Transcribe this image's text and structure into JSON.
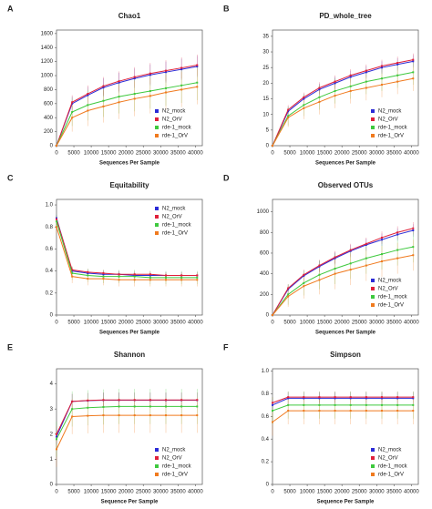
{
  "chart_data": [
    {
      "type": "line",
      "label": "A",
      "title": "Chao1",
      "x_label": "Sequences Per Sample",
      "legend": "lower right",
      "x": [
        0,
        4500,
        9000,
        13500,
        18000,
        22500,
        27000,
        31500,
        36000,
        40500
      ],
      "xlim": [
        0,
        42000
      ],
      "xticks": [
        0,
        5000,
        10000,
        15000,
        20000,
        25000,
        30000,
        35000,
        40000
      ],
      "ylim": [
        0,
        1650
      ],
      "yticks": [
        0,
        200,
        400,
        600,
        800,
        1000,
        1200,
        1400,
        1600
      ],
      "series": [
        {
          "name": "N2_mock",
          "color": "#2b2bd6",
          "values": [
            0,
            600,
            720,
            830,
            900,
            960,
            1010,
            1050,
            1090,
            1130
          ],
          "errors": [
            0,
            100,
            120,
            130,
            140,
            140,
            150,
            150,
            150,
            150
          ]
        },
        {
          "name": "N2_OrV",
          "color": "#e0203a",
          "values": [
            0,
            620,
            740,
            850,
            920,
            980,
            1030,
            1070,
            1110,
            1150
          ],
          "errors": [
            0,
            100,
            120,
            130,
            140,
            140,
            150,
            150,
            150,
            150
          ]
        },
        {
          "name": "rde-1_mock",
          "color": "#3ec93e",
          "values": [
            0,
            480,
            580,
            640,
            700,
            740,
            780,
            820,
            860,
            900
          ],
          "errors": [
            0,
            200,
            220,
            230,
            240,
            250,
            250,
            250,
            250,
            250
          ]
        },
        {
          "name": "rde-1_OrV",
          "color": "#f07a1e",
          "values": [
            0,
            400,
            500,
            560,
            620,
            670,
            710,
            760,
            800,
            840
          ],
          "errors": [
            0,
            200,
            220,
            230,
            240,
            250,
            250,
            250,
            250,
            250
          ]
        }
      ]
    },
    {
      "type": "line",
      "label": "B",
      "title": "PD_whole_tree",
      "x_label": "Sequences Per Sample",
      "legend": "lower right",
      "x": [
        0,
        4500,
        9000,
        13500,
        18000,
        22500,
        27000,
        31500,
        36000,
        40500
      ],
      "xlim": [
        0,
        42000
      ],
      "xticks": [
        0,
        5000,
        10000,
        15000,
        20000,
        25000,
        30000,
        35000,
        40000
      ],
      "ylim": [
        0,
        37
      ],
      "yticks": [
        0,
        5,
        10,
        15,
        20,
        25,
        30,
        35
      ],
      "series": [
        {
          "name": "N2_mock",
          "color": "#2b2bd6",
          "values": [
            0,
            11,
            15,
            18,
            20,
            22,
            23.5,
            25,
            26,
            27
          ],
          "errors": [
            0,
            1.5,
            1.5,
            1.8,
            2,
            2,
            2,
            2,
            2,
            2
          ]
        },
        {
          "name": "N2_OrV",
          "color": "#e0203a",
          "values": [
            0,
            11.5,
            15.5,
            18.5,
            20.5,
            22.5,
            24,
            25.5,
            26.5,
            27.5
          ],
          "errors": [
            0,
            1.5,
            1.5,
            1.8,
            2,
            2,
            2,
            2,
            2,
            2
          ]
        },
        {
          "name": "rde-1_mock",
          "color": "#3ec93e",
          "values": [
            0,
            9.5,
            13,
            15.5,
            17.5,
            19,
            20.5,
            21.5,
            22.5,
            23.5
          ],
          "errors": [
            0,
            3,
            3.5,
            4,
            4,
            4,
            4,
            4,
            4,
            4
          ]
        },
        {
          "name": "rde-1_OrV",
          "color": "#f07a1e",
          "values": [
            0,
            9,
            12,
            14,
            16,
            17.5,
            18.5,
            19.5,
            20.5,
            21.5
          ],
          "errors": [
            0,
            3,
            3.5,
            4,
            4,
            4,
            4,
            4,
            4,
            4
          ]
        }
      ]
    },
    {
      "type": "line",
      "label": "C",
      "title": "Equitability",
      "x_label": "Sequences Per Sample",
      "legend": "upper right",
      "x": [
        0,
        4500,
        9000,
        13500,
        18000,
        22500,
        27000,
        31500,
        36000,
        40500
      ],
      "xlim": [
        0,
        42000
      ],
      "xticks": [
        0,
        5000,
        10000,
        15000,
        20000,
        25000,
        30000,
        35000,
        40000
      ],
      "ylim": [
        0,
        1.05
      ],
      "yticks": [
        0,
        0.2,
        0.4,
        0.6,
        0.8,
        {
          "value": 1,
          "label": "1.0"
        }
      ],
      "series": [
        {
          "name": "N2_mock",
          "color": "#2b2bd6",
          "values": [
            0.88,
            0.4,
            0.38,
            0.37,
            0.37,
            0.36,
            0.36,
            0.36,
            0.36,
            0.36
          ],
          "errors": [
            0.03,
            0.03,
            0.03,
            0.03,
            0.03,
            0.03,
            0.03,
            0.03,
            0.03,
            0.03
          ]
        },
        {
          "name": "N2_OrV",
          "color": "#e0203a",
          "values": [
            0.87,
            0.41,
            0.39,
            0.38,
            0.37,
            0.37,
            0.37,
            0.36,
            0.36,
            0.36
          ],
          "errors": [
            0.03,
            0.03,
            0.03,
            0.03,
            0.03,
            0.03,
            0.03,
            0.03,
            0.03,
            0.03
          ]
        },
        {
          "name": "rde-1_mock",
          "color": "#3ec93e",
          "values": [
            0.85,
            0.38,
            0.36,
            0.35,
            0.35,
            0.35,
            0.34,
            0.34,
            0.34,
            0.34
          ],
          "errors": [
            0.06,
            0.06,
            0.06,
            0.06,
            0.06,
            0.06,
            0.06,
            0.06,
            0.06,
            0.06
          ]
        },
        {
          "name": "rde-1_OrV",
          "color": "#f07a1e",
          "values": [
            0.8,
            0.35,
            0.33,
            0.33,
            0.32,
            0.32,
            0.32,
            0.32,
            0.32,
            0.32
          ],
          "errors": [
            0.06,
            0.06,
            0.06,
            0.06,
            0.06,
            0.06,
            0.06,
            0.06,
            0.06,
            0.06
          ]
        }
      ]
    },
    {
      "type": "line",
      "label": "D",
      "title": "Observed OTUs",
      "x_label": "Sequences Per Sample",
      "legend": "lower right",
      "x": [
        0,
        4500,
        9000,
        13500,
        18000,
        22500,
        27000,
        31500,
        36000,
        40500
      ],
      "xlim": [
        0,
        42000
      ],
      "xticks": [
        0,
        5000,
        10000,
        15000,
        20000,
        25000,
        30000,
        35000,
        40000
      ],
      "ylim": [
        0,
        1120
      ],
      "yticks": [
        0,
        200,
        400,
        600,
        800,
        1000
      ],
      "series": [
        {
          "name": "N2_mock",
          "color": "#2b2bd6",
          "values": [
            0,
            250,
            380,
            470,
            550,
            620,
            680,
            730,
            780,
            820
          ],
          "errors": [
            0,
            40,
            50,
            55,
            60,
            60,
            60,
            60,
            60,
            60
          ]
        },
        {
          "name": "N2_OrV",
          "color": "#e0203a",
          "values": [
            0,
            260,
            390,
            480,
            560,
            630,
            690,
            750,
            800,
            840
          ],
          "errors": [
            0,
            40,
            50,
            55,
            60,
            60,
            60,
            60,
            60,
            60
          ]
        },
        {
          "name": "rde-1_mock",
          "color": "#3ec93e",
          "values": [
            0,
            200,
            310,
            390,
            450,
            500,
            550,
            590,
            630,
            660
          ],
          "errors": [
            0,
            100,
            120,
            140,
            150,
            150,
            150,
            150,
            150,
            150
          ]
        },
        {
          "name": "rde-1_OrV",
          "color": "#f07a1e",
          "values": [
            0,
            180,
            280,
            340,
            400,
            440,
            480,
            520,
            550,
            580
          ],
          "errors": [
            0,
            100,
            120,
            140,
            150,
            150,
            150,
            150,
            150,
            150
          ]
        }
      ]
    },
    {
      "type": "line",
      "label": "E",
      "title": "Shannon",
      "x_label": "Sequence Per Sample",
      "legend": "lower right",
      "x": [
        0,
        4500,
        9000,
        13500,
        18000,
        22500,
        27000,
        31500,
        36000,
        40500
      ],
      "xlim": [
        0,
        42000
      ],
      "xticks": [
        0,
        5000,
        10000,
        15000,
        20000,
        25000,
        30000,
        35000,
        40000
      ],
      "ylim": [
        0,
        4.6
      ],
      "yticks": [
        0,
        1,
        2,
        3,
        4
      ],
      "series": [
        {
          "name": "N2_mock",
          "color": "#2b2bd6",
          "values": [
            1.9,
            3.3,
            3.33,
            3.35,
            3.35,
            3.35,
            3.35,
            3.35,
            3.35,
            3.35
          ],
          "errors": [
            0.3,
            0.3,
            0.3,
            0.3,
            0.3,
            0.3,
            0.3,
            0.3,
            0.3,
            0.3
          ]
        },
        {
          "name": "N2_OrV",
          "color": "#e0203a",
          "values": [
            2.0,
            3.3,
            3.34,
            3.36,
            3.36,
            3.36,
            3.36,
            3.36,
            3.36,
            3.36
          ],
          "errors": [
            0.3,
            0.3,
            0.3,
            0.3,
            0.3,
            0.3,
            0.3,
            0.3,
            0.3,
            0.3
          ]
        },
        {
          "name": "rde-1_mock",
          "color": "#3ec93e",
          "values": [
            1.8,
            3.0,
            3.05,
            3.08,
            3.1,
            3.1,
            3.1,
            3.1,
            3.1,
            3.1
          ],
          "errors": [
            0.7,
            0.7,
            0.7,
            0.7,
            0.7,
            0.7,
            0.7,
            0.7,
            0.7,
            0.7
          ]
        },
        {
          "name": "rde-1_OrV",
          "color": "#f07a1e",
          "values": [
            1.4,
            2.7,
            2.73,
            2.75,
            2.75,
            2.75,
            2.75,
            2.75,
            2.75,
            2.75
          ],
          "errors": [
            0.7,
            0.7,
            0.7,
            0.7,
            0.7,
            0.7,
            0.7,
            0.7,
            0.7,
            0.7
          ]
        }
      ]
    },
    {
      "type": "line",
      "label": "F",
      "title": "Simpson",
      "x_label": "Sequence Per Sample",
      "legend": "lower right",
      "x": [
        0,
        4500,
        9000,
        13500,
        18000,
        22500,
        27000,
        31500,
        36000,
        40500
      ],
      "xlim": [
        0,
        42000
      ],
      "xticks": [
        0,
        5000,
        10000,
        15000,
        20000,
        25000,
        30000,
        35000,
        40000
      ],
      "ylim": [
        0,
        1.02
      ],
      "yticks": [
        0,
        0.2,
        0.4,
        0.6,
        0.8,
        {
          "value": 1,
          "label": "1.0"
        }
      ],
      "series": [
        {
          "name": "N2_mock",
          "color": "#2b2bd6",
          "values": [
            0.7,
            0.76,
            0.76,
            0.76,
            0.76,
            0.76,
            0.76,
            0.76,
            0.76,
            0.76
          ],
          "errors": [
            0.05,
            0.05,
            0.05,
            0.05,
            0.05,
            0.05,
            0.05,
            0.05,
            0.05,
            0.05
          ]
        },
        {
          "name": "N2_OrV",
          "color": "#e0203a",
          "values": [
            0.72,
            0.77,
            0.77,
            0.77,
            0.77,
            0.77,
            0.77,
            0.77,
            0.77,
            0.77
          ],
          "errors": [
            0.05,
            0.05,
            0.05,
            0.05,
            0.05,
            0.05,
            0.05,
            0.05,
            0.05,
            0.05
          ]
        },
        {
          "name": "rde-1_mock",
          "color": "#3ec93e",
          "values": [
            0.65,
            0.7,
            0.7,
            0.7,
            0.7,
            0.7,
            0.7,
            0.7,
            0.7,
            0.7
          ],
          "errors": [
            0.12,
            0.12,
            0.12,
            0.12,
            0.12,
            0.12,
            0.12,
            0.12,
            0.12,
            0.12
          ]
        },
        {
          "name": "rde-1_OrV",
          "color": "#f07a1e",
          "values": [
            0.55,
            0.65,
            0.65,
            0.65,
            0.65,
            0.65,
            0.65,
            0.65,
            0.65,
            0.65
          ],
          "errors": [
            0.12,
            0.12,
            0.12,
            0.12,
            0.12,
            0.12,
            0.12,
            0.12,
            0.12,
            0.12
          ]
        }
      ]
    }
  ]
}
